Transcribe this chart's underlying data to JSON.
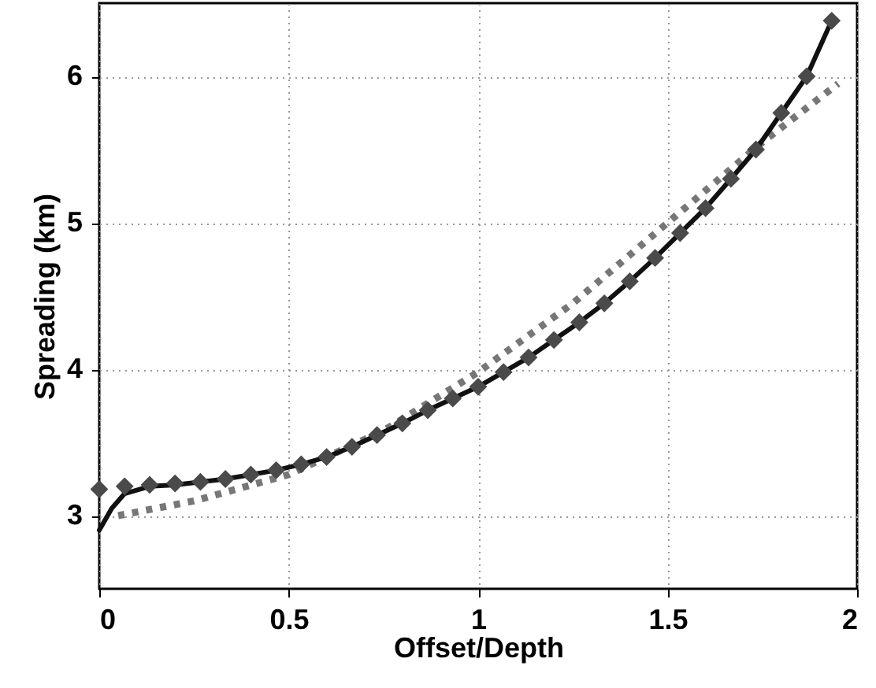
{
  "chart_data": {
    "type": "line",
    "xlabel": "Offset/Depth",
    "ylabel": "Spreading (km)",
    "xlim": [
      0,
      2
    ],
    "ylim": [
      2.5,
      6.5
    ],
    "xticks": [
      0,
      0.5,
      1,
      1.5,
      2
    ],
    "yticks": [
      3,
      4,
      5,
      6
    ],
    "grid": true,
    "series": [
      {
        "type": "line",
        "color": "#777777",
        "line_style": "dotted",
        "marker": "none",
        "x": [
          0.05,
          0.25,
          0.5,
          0.75,
          1.0,
          1.25,
          1.5,
          1.75,
          1.95
        ],
        "values": [
          3.0,
          3.1,
          3.28,
          3.58,
          3.98,
          4.45,
          5.0,
          5.55,
          5.95
        ]
      },
      {
        "type": "line",
        "color": "#111111",
        "line_style": "solid",
        "marker": "none",
        "x": [
          0,
          0.033,
          0.067,
          0.133,
          0.2,
          0.267,
          0.333,
          0.4,
          0.467,
          0.533,
          0.6,
          0.667,
          0.733,
          0.8,
          0.867,
          0.933,
          1.0,
          1.067,
          1.133,
          1.2,
          1.267,
          1.333,
          1.4,
          1.467,
          1.533,
          1.6,
          1.667,
          1.733,
          1.8,
          1.867,
          1.933
        ],
        "values": [
          2.9,
          3.05,
          3.15,
          3.2,
          3.21,
          3.23,
          3.25,
          3.28,
          3.31,
          3.35,
          3.4,
          3.47,
          3.55,
          3.63,
          3.72,
          3.8,
          3.88,
          3.98,
          4.08,
          4.2,
          4.32,
          4.45,
          4.6,
          4.76,
          4.93,
          5.1,
          5.3,
          5.5,
          5.75,
          6.0,
          6.38
        ]
      },
      {
        "type": "scatter",
        "color": "#4a4a4a",
        "marker": "diamond",
        "x": [
          0,
          0.067,
          0.133,
          0.2,
          0.267,
          0.333,
          0.4,
          0.467,
          0.533,
          0.6,
          0.667,
          0.733,
          0.8,
          0.867,
          0.933,
          1.0,
          1.067,
          1.133,
          1.2,
          1.267,
          1.333,
          1.4,
          1.467,
          1.533,
          1.6,
          1.667,
          1.733,
          1.8,
          1.867,
          1.933
        ],
        "values": [
          3.18,
          3.2,
          3.21,
          3.22,
          3.23,
          3.25,
          3.28,
          3.31,
          3.35,
          3.4,
          3.47,
          3.55,
          3.63,
          3.72,
          3.8,
          3.88,
          3.98,
          4.08,
          4.2,
          4.32,
          4.45,
          4.6,
          4.76,
          4.93,
          5.1,
          5.3,
          5.5,
          5.75,
          6.0,
          6.38
        ]
      }
    ]
  }
}
